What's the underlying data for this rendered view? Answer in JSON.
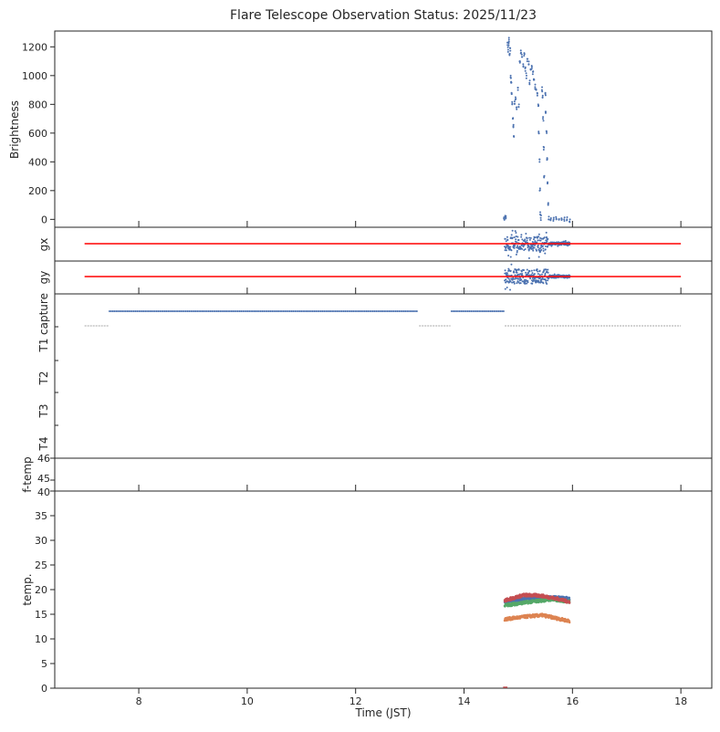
{
  "chart_data": {
    "type": "scatter",
    "title": "Flare Telescope Observation Status: 2025/11/23",
    "xlabel": "Time (JST)",
    "xlim": [
      6.45,
      18.57
    ],
    "xticks": [
      8,
      10,
      12,
      14,
      16,
      18
    ],
    "colors": {
      "blue": "#4c72b0",
      "orange": "#dd8452",
      "green": "#55a868",
      "red": "#c44e52",
      "line": "#ff0000",
      "gray": "#888888"
    },
    "panels": {
      "brightness": {
        "ylabel": "Brightness",
        "ylim": [
          -55,
          1310
        ],
        "yticks": [
          0,
          200,
          400,
          600,
          800,
          1000,
          1200
        ],
        "points": [
          [
            14.74,
            5
          ],
          [
            14.76,
            15
          ],
          [
            14.77,
            10
          ],
          [
            14.8,
            1230
          ],
          [
            14.81,
            1180
          ],
          [
            14.82,
            1210
          ],
          [
            14.83,
            1250
          ],
          [
            14.84,
            1150
          ],
          [
            14.85,
            1190
          ],
          [
            14.86,
            1000
          ],
          [
            14.87,
            950
          ],
          [
            14.88,
            880
          ],
          [
            14.89,
            800
          ],
          [
            14.9,
            700
          ],
          [
            14.91,
            640
          ],
          [
            14.92,
            580
          ],
          [
            14.93,
            820
          ],
          [
            14.95,
            850
          ],
          [
            14.97,
            780
          ],
          [
            14.99,
            900
          ],
          [
            15.01,
            800
          ],
          [
            15.03,
            1100
          ],
          [
            15.05,
            1160
          ],
          [
            15.07,
            1130
          ],
          [
            15.09,
            1080
          ],
          [
            15.11,
            1150
          ],
          [
            15.13,
            1050
          ],
          [
            15.15,
            1000
          ],
          [
            15.17,
            1100
          ],
          [
            15.19,
            1080
          ],
          [
            15.21,
            950
          ],
          [
            15.23,
            1040
          ],
          [
            15.25,
            1060
          ],
          [
            15.27,
            1010
          ],
          [
            15.29,
            970
          ],
          [
            15.31,
            920
          ],
          [
            15.33,
            900
          ],
          [
            15.35,
            880
          ],
          [
            15.37,
            800
          ],
          [
            15.38,
            600
          ],
          [
            15.39,
            400
          ],
          [
            15.4,
            200
          ],
          [
            15.41,
            50
          ],
          [
            15.42,
            10
          ],
          [
            15.44,
            900
          ],
          [
            15.45,
            850
          ],
          [
            15.46,
            700
          ],
          [
            15.47,
            500
          ],
          [
            15.48,
            300
          ],
          [
            15.5,
            880
          ],
          [
            15.51,
            750
          ],
          [
            15.52,
            600
          ],
          [
            15.53,
            420
          ],
          [
            15.54,
            250
          ],
          [
            15.55,
            100
          ],
          [
            15.56,
            0
          ],
          [
            15.6,
            0
          ],
          [
            15.65,
            0
          ],
          [
            15.7,
            0
          ],
          [
            15.75,
            0
          ],
          [
            15.8,
            0
          ],
          [
            15.85,
            0
          ],
          [
            15.9,
            0
          ],
          [
            15.95,
            0
          ]
        ]
      },
      "gx": {
        "ylabel": "gx",
        "reference": {
          "from": 7.0,
          "to": 18.0
        },
        "scatter": {
          "from": 14.75,
          "to": 15.95
        }
      },
      "gy": {
        "ylabel": "gy",
        "reference": {
          "from": 7.0,
          "to": 18.0
        },
        "scatter": {
          "from": 14.75,
          "to": 15.95
        }
      },
      "status": {
        "ylabels": [
          "capture",
          "T1",
          "T2",
          "T3",
          "T4"
        ],
        "capture_on": [
          [
            7.46,
            13.15
          ],
          [
            13.77,
            14.73
          ]
        ],
        "capture_off": [
          [
            7.0,
            7.44
          ],
          [
            13.17,
            13.75
          ],
          [
            14.75,
            18.0
          ]
        ]
      },
      "ftemp": {
        "ylabel": "f-temp",
        "yticks": [
          "46",
          "45",
          "40"
        ]
      },
      "temp": {
        "ylabel": "temp.",
        "ylim": [
          0,
          40
        ],
        "yticks": [
          0,
          5,
          10,
          15,
          20,
          25,
          30,
          35,
          40
        ],
        "series": [
          {
            "name": "blue",
            "color": "#4c72b0",
            "points": [
              [
                14.75,
                17.6
              ],
              [
                15.2,
                18.2
              ],
              [
                15.6,
                18.4
              ],
              [
                15.95,
                18.2
              ]
            ]
          },
          {
            "name": "green",
            "color": "#55a868",
            "points": [
              [
                14.75,
                16.8
              ],
              [
                15.2,
                17.5
              ],
              [
                15.6,
                18.0
              ],
              [
                15.95,
                17.6
              ]
            ]
          },
          {
            "name": "red",
            "color": "#c44e52",
            "points": [
              [
                14.75,
                17.8
              ],
              [
                15.1,
                18.9
              ],
              [
                15.4,
                18.8
              ],
              [
                15.7,
                18.2
              ],
              [
                15.95,
                17.5
              ]
            ]
          },
          {
            "name": "orange",
            "color": "#dd8452",
            "points": [
              [
                14.75,
                14.0
              ],
              [
                15.2,
                14.6
              ],
              [
                15.45,
                14.8
              ],
              [
                15.95,
                13.6
              ]
            ]
          }
        ]
      }
    }
  }
}
